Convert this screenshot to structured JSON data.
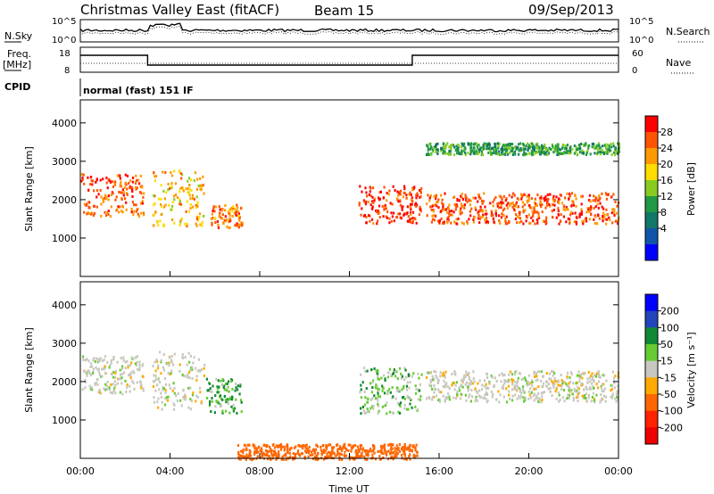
{
  "header": {
    "title": "Christmas Valley East (fitACF)",
    "beam": "Beam 15",
    "date": "09/Sep/2013"
  },
  "labels": {
    "nsky": "N.Sky",
    "nsearch": "N.Search",
    "freq_line1": "Freq.",
    "freq_line2": "[MHz]",
    "nave": "Nave",
    "cpid": "CPID",
    "cpid_value": "normal (fast) 151 IF",
    "noise_ticks_left": [
      "10^5",
      "10^0"
    ],
    "noise_ticks_right": [
      "10^5",
      "10^0"
    ],
    "freq_ticks": [
      "18",
      "8"
    ],
    "nave_ticks": [
      "60",
      "0"
    ]
  },
  "chart_data": [
    {
      "type": "heatmap",
      "name": "power",
      "ylabel": "Slant Range [km]",
      "xlabel": "",
      "ylim": [
        0,
        4600
      ],
      "yticks": [
        "4000",
        "3000",
        "2000",
        "1000"
      ],
      "colorbar": {
        "label": "Power [dB]",
        "ticks": [
          "28",
          "24",
          "20",
          "16",
          "12",
          "8",
          "4"
        ],
        "colors": [
          "#ff0000",
          "#ff5500",
          "#ff9900",
          "#ffdd00",
          "#88cc22",
          "#229944",
          "#117766",
          "#1155aa",
          "#0000ff"
        ]
      },
      "features": [
        {
          "desc": "early band",
          "t": [
            0.0,
            2.8
          ],
          "range_km": [
            1600,
            2700
          ],
          "level_db": 24
        },
        {
          "desc": "rising streak",
          "t": [
            3.2,
            5.5
          ],
          "range_km": [
            1300,
            2800
          ],
          "level_db": 18
        },
        {
          "desc": "blob",
          "t": [
            5.8,
            7.2
          ],
          "range_km": [
            1300,
            1900
          ],
          "level_db": 22
        },
        {
          "desc": "descending streak",
          "t": [
            12.4,
            15.2
          ],
          "range_km": [
            1400,
            2400
          ],
          "level_db": 26
        },
        {
          "desc": "late band",
          "t": [
            15.4,
            24.0
          ],
          "range_km": [
            1400,
            2200
          ],
          "level_db": 24
        },
        {
          "desc": "upper band",
          "t": [
            15.4,
            24.0
          ],
          "range_km": [
            3200,
            3500
          ],
          "level_db": 8
        }
      ]
    },
    {
      "type": "heatmap",
      "name": "velocity",
      "ylabel": "Slant Range [km]",
      "xlabel": "Time UT",
      "ylim": [
        0,
        4600
      ],
      "yticks": [
        "4000",
        "3000",
        "2000",
        "1000"
      ],
      "xticks": [
        "00:00",
        "04:00",
        "08:00",
        "12:00",
        "16:00",
        "20:00",
        "00:00"
      ],
      "colorbar": {
        "label": "Velocity [m s⁻¹]",
        "ticks": [
          "200",
          "100",
          "50",
          "15",
          "-15",
          "-50",
          "-100",
          "-200"
        ],
        "colors": [
          "#0000ff",
          "#2244bb",
          "#118833",
          "#66cc33",
          "#c8c8c0",
          "#ffaa00",
          "#ff6600",
          "#ff2200",
          "#ee0000"
        ]
      },
      "features": [
        {
          "desc": "early band",
          "t": [
            0.0,
            2.8
          ],
          "range_km": [
            1700,
            2700
          ],
          "velocity": 0
        },
        {
          "desc": "rising streak",
          "t": [
            3.2,
            5.5
          ],
          "range_km": [
            1300,
            2800
          ],
          "velocity": 0
        },
        {
          "desc": "blob",
          "t": [
            5.6,
            7.2
          ],
          "range_km": [
            1200,
            2100
          ],
          "velocity": 30
        },
        {
          "desc": "descending streak",
          "t": [
            12.4,
            15.2
          ],
          "range_km": [
            1200,
            2400
          ],
          "velocity": 20
        },
        {
          "desc": "late band",
          "t": [
            15.4,
            24.0
          ],
          "range_km": [
            1500,
            2300
          ],
          "velocity": 0
        },
        {
          "desc": "near-range ground",
          "t": [
            7.0,
            15.0
          ],
          "range_km": [
            0,
            400
          ],
          "velocity": -80
        }
      ]
    }
  ]
}
